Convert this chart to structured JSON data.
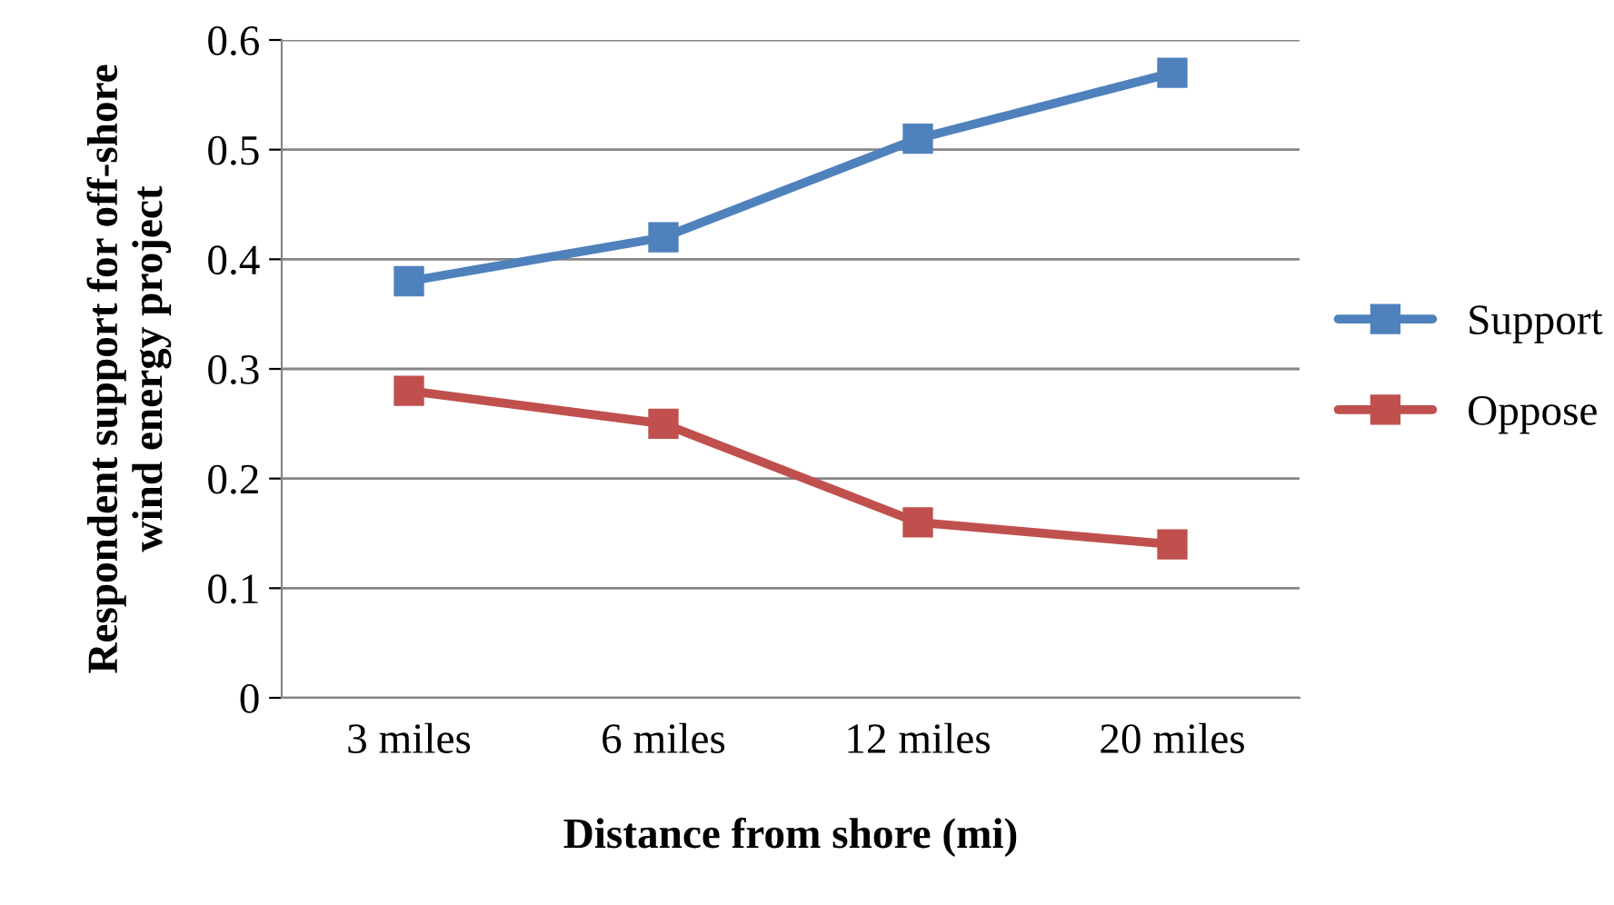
{
  "chart_data": {
    "type": "line",
    "xlabel": "Distance from shore (mi)",
    "ylabel": "Respondent support for off-shore\nwind energy project",
    "categories": [
      "3 miles",
      "6 miles",
      "12 miles",
      "20 miles"
    ],
    "series": [
      {
        "name": "Support",
        "color": "#4f81bd",
        "values": [
          0.38,
          0.42,
          0.51,
          0.57
        ]
      },
      {
        "name": "Oppose",
        "color": "#c0504d",
        "values": [
          0.28,
          0.25,
          0.16,
          0.14
        ]
      }
    ],
    "ylim": [
      0,
      0.6
    ],
    "yticks": [
      0,
      0.1,
      0.2,
      0.3,
      0.4,
      0.5,
      0.6
    ],
    "grid": "y",
    "legend": "right",
    "marker": "square",
    "line_style": "solid"
  }
}
